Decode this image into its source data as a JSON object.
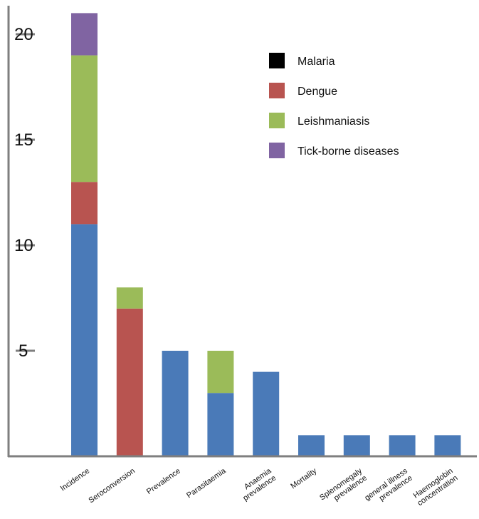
{
  "chart_data": {
    "type": "bar",
    "stacked": true,
    "title": "",
    "xlabel": "",
    "ylabel": "",
    "ylim": [
      0,
      21
    ],
    "yticks": [
      5,
      10,
      15,
      20
    ],
    "grid": false,
    "legend_position": "top-right",
    "categories": [
      [
        "Incidence"
      ],
      [
        "Seroconversion"
      ],
      [
        "Prevalence"
      ],
      [
        "Parasitaemia"
      ],
      [
        "Anaemia",
        "prevalence"
      ],
      [
        "Mortality"
      ],
      [
        "Splenomegaly",
        "prevalence"
      ],
      [
        "general illness",
        "prevalence"
      ],
      [
        "Haemoglobin",
        "concentration"
      ]
    ],
    "series": [
      {
        "name": "Malaria",
        "color": "#4a7ab8",
        "values": [
          11,
          0,
          5,
          3,
          4,
          1,
          1,
          1,
          1
        ]
      },
      {
        "name": "Dengue",
        "color": "#b85450",
        "values": [
          2,
          7,
          0,
          0,
          0,
          0,
          0,
          0,
          0
        ]
      },
      {
        "name": "Leishmaniasis",
        "color": "#9bbb59",
        "values": [
          6,
          1,
          0,
          2,
          0,
          0,
          0,
          0,
          0
        ]
      },
      {
        "name": "Tick-borne diseases",
        "color": "#8064a2",
        "values": [
          2,
          0,
          0,
          0,
          0,
          0,
          0,
          0,
          0
        ]
      }
    ],
    "legend": [
      {
        "name": "Malaria",
        "color": "#000000"
      },
      {
        "name": "Dengue",
        "color": "#b85450"
      },
      {
        "name": "Leishmaniasis",
        "color": "#9bbb59"
      },
      {
        "name": "Tick-borne diseases",
        "color": "#8064a2"
      }
    ]
  }
}
